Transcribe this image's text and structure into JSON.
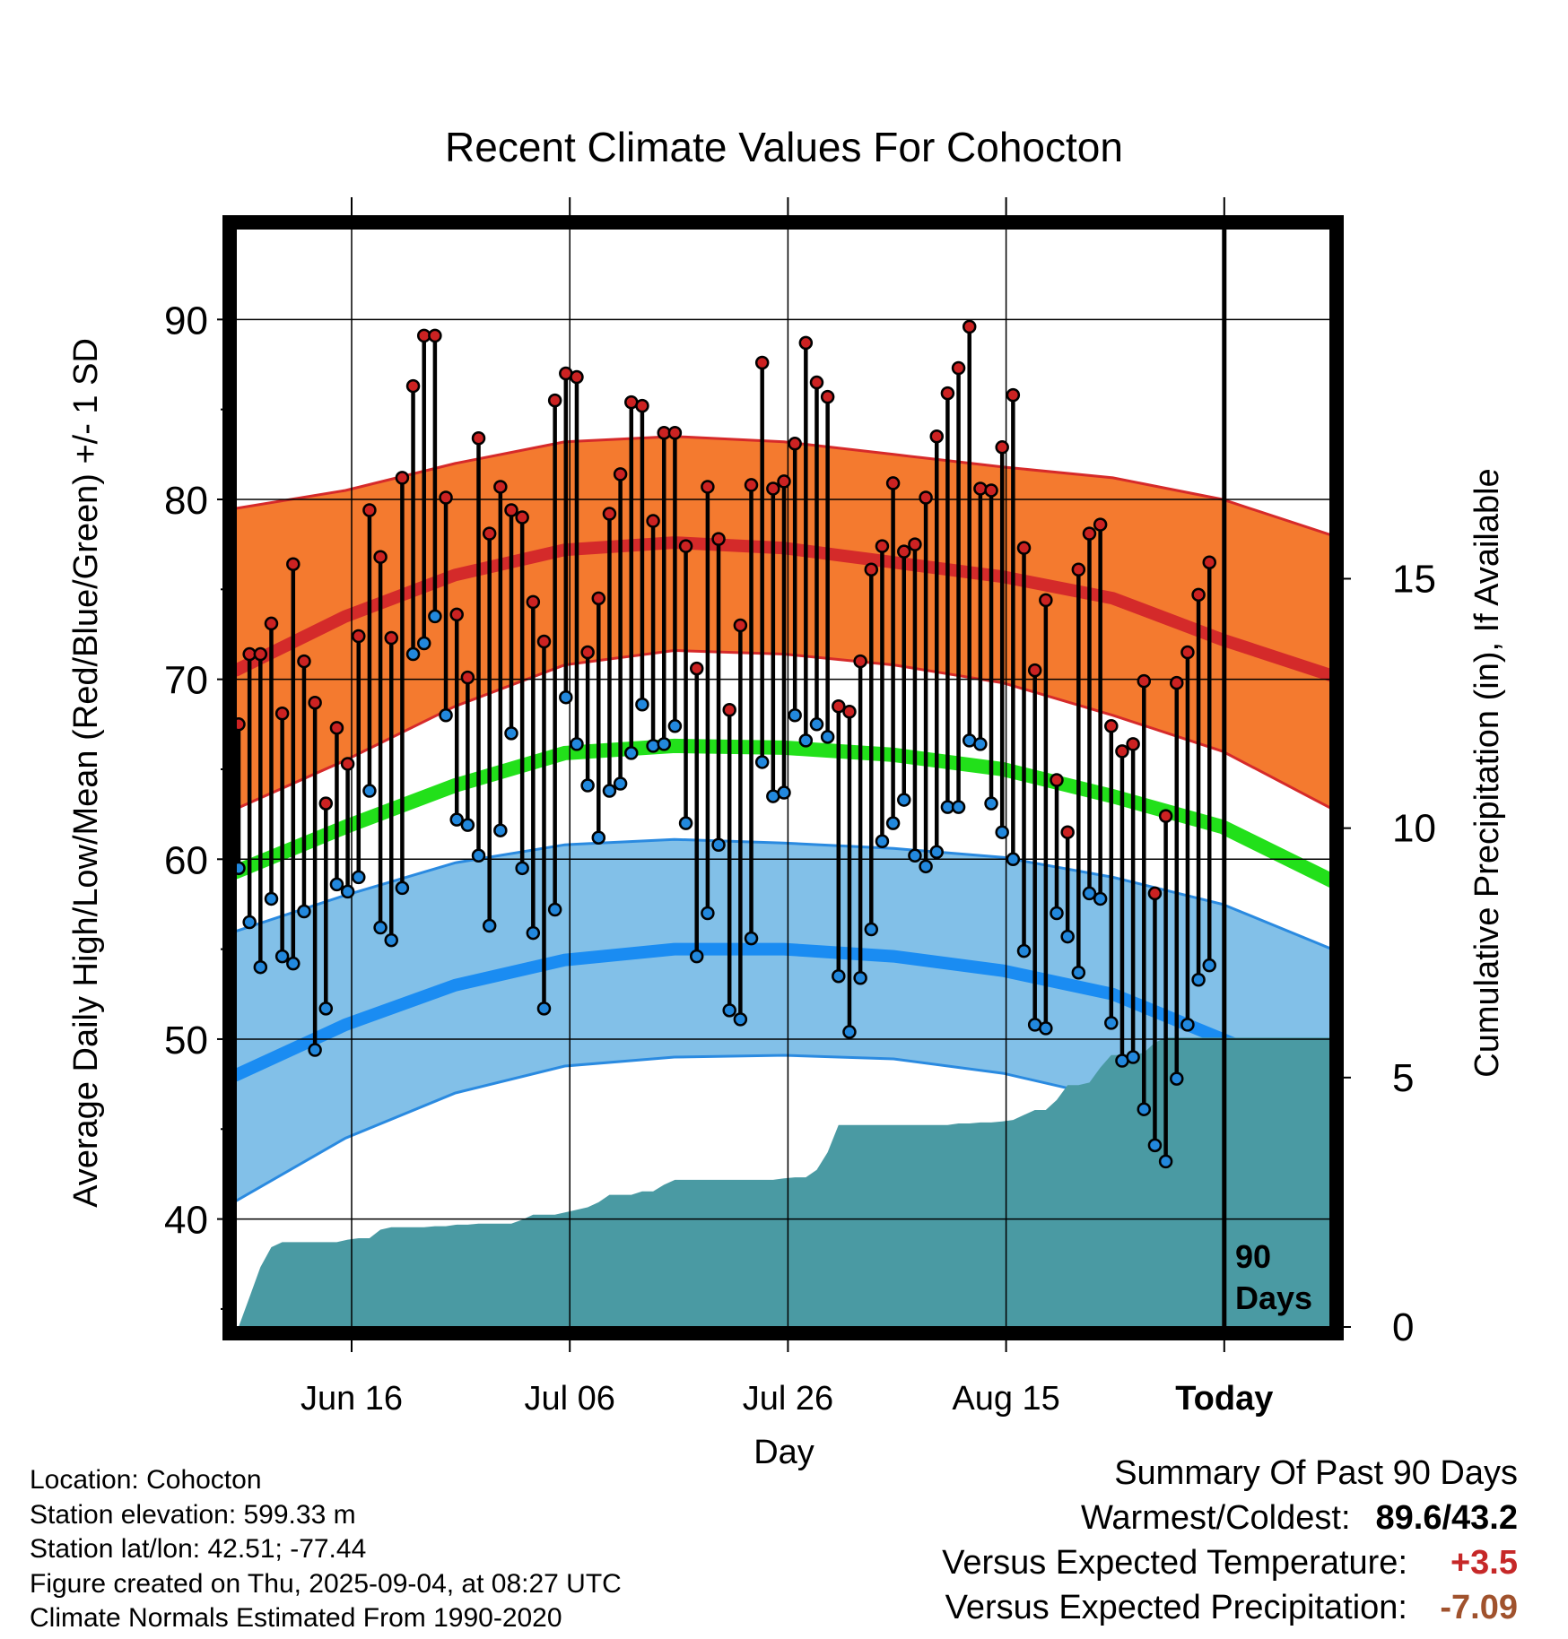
{
  "chart_data": {
    "type": "line",
    "title": "Recent Climate Values For Cohocton",
    "xlabel": "Day",
    "ylabel": "Average Daily High/Low/Mean (Red/Blue/Green) +/- 1 SD",
    "y2label": "Cumulative Precipitation (in), If Available",
    "ylim": [
      34,
      95
    ],
    "y_ticks": [
      40,
      50,
      60,
      70,
      80,
      90
    ],
    "y2lim": [
      0,
      22
    ],
    "y2_ticks": [
      0,
      5,
      10,
      15
    ],
    "x_days": 90,
    "x_ticks": [
      {
        "day": 10,
        "label": "Jun 16"
      },
      {
        "day": 30,
        "label": "Jul 06"
      },
      {
        "day": 50,
        "label": "Jul 26"
      },
      {
        "day": 70,
        "label": "Aug 15"
      },
      {
        "day": 90,
        "label": "Today"
      }
    ],
    "today_marker_label": [
      "90",
      "Days"
    ],
    "normals": {
      "high_mean_points": [
        [
          0,
          70.5
        ],
        [
          10,
          73.5
        ],
        [
          20,
          75.8
        ],
        [
          30,
          77.2
        ],
        [
          40,
          77.6
        ],
        [
          50,
          77.3
        ],
        [
          60,
          76.5
        ],
        [
          70,
          75.7
        ],
        [
          80,
          74.5
        ],
        [
          90,
          72.2
        ],
        [
          100,
          70.2
        ]
      ],
      "high_sd_upper_points": [
        [
          0,
          79.5
        ],
        [
          10,
          80.5
        ],
        [
          20,
          82.0
        ],
        [
          30,
          83.2
        ],
        [
          40,
          83.5
        ],
        [
          50,
          83.2
        ],
        [
          60,
          82.5
        ],
        [
          70,
          81.8
        ],
        [
          80,
          81.2
        ],
        [
          90,
          80.0
        ],
        [
          100,
          78.0
        ]
      ],
      "high_sd_lower_points": [
        [
          0,
          62.8
        ],
        [
          10,
          65.5
        ],
        [
          20,
          68.5
        ],
        [
          30,
          70.8
        ],
        [
          40,
          71.6
        ],
        [
          50,
          71.4
        ],
        [
          60,
          70.8
        ],
        [
          70,
          69.8
        ],
        [
          80,
          68.0
        ],
        [
          90,
          66.0
        ],
        [
          100,
          62.8
        ]
      ],
      "mean_points": [
        [
          0,
          59.3
        ],
        [
          10,
          61.8
        ],
        [
          20,
          64.1
        ],
        [
          30,
          65.9
        ],
        [
          40,
          66.3
        ],
        [
          50,
          66.2
        ],
        [
          60,
          65.8
        ],
        [
          70,
          65.0
        ],
        [
          80,
          63.5
        ],
        [
          90,
          61.8
        ],
        [
          100,
          58.8
        ]
      ],
      "low_mean_points": [
        [
          0,
          48.0
        ],
        [
          10,
          50.8
        ],
        [
          20,
          53.0
        ],
        [
          30,
          54.4
        ],
        [
          40,
          55.0
        ],
        [
          50,
          55.0
        ],
        [
          60,
          54.6
        ],
        [
          70,
          53.8
        ],
        [
          80,
          52.5
        ],
        [
          90,
          50.0
        ],
        [
          100,
          47.5
        ]
      ],
      "low_sd_upper_points": [
        [
          0,
          56.0
        ],
        [
          10,
          58.0
        ],
        [
          20,
          59.8
        ],
        [
          30,
          60.8
        ],
        [
          40,
          61.1
        ],
        [
          50,
          60.9
        ],
        [
          60,
          60.6
        ],
        [
          70,
          60.1
        ],
        [
          80,
          59.0
        ],
        [
          90,
          57.5
        ],
        [
          100,
          55.0
        ]
      ],
      "low_sd_lower_points": [
        [
          0,
          41.0
        ],
        [
          10,
          44.5
        ],
        [
          20,
          47.0
        ],
        [
          30,
          48.5
        ],
        [
          40,
          49.0
        ],
        [
          50,
          49.1
        ],
        [
          60,
          48.9
        ],
        [
          70,
          48.1
        ],
        [
          80,
          46.7
        ],
        [
          90,
          44.0
        ],
        [
          100,
          40.5
        ]
      ]
    },
    "series": [
      {
        "name": "High",
        "color": "#cc2222",
        "values": [
          67.5,
          71.4,
          71.4,
          73.1,
          68.1,
          76.4,
          71.0,
          68.7,
          63.1,
          67.3,
          65.3,
          72.4,
          79.4,
          76.8,
          72.3,
          81.2,
          86.3,
          89.1,
          89.1,
          80.1,
          73.6,
          70.1,
          83.4,
          78.1,
          80.7,
          79.4,
          79.0,
          74.3,
          72.1,
          85.5,
          87.0,
          86.8,
          71.5,
          74.5,
          79.2,
          81.4,
          85.4,
          85.2,
          78.8,
          83.7,
          83.7,
          77.4,
          70.6,
          80.7,
          77.8,
          68.3,
          73.0,
          80.8,
          87.6,
          80.6,
          81.0,
          83.1,
          88.7,
          86.5,
          85.7,
          68.5,
          68.2,
          71.0,
          76.1,
          77.4,
          80.9,
          77.1,
          77.5,
          80.1,
          83.5,
          85.9,
          87.3,
          89.6,
          80.6,
          80.5,
          82.9,
          85.8,
          77.3,
          70.5,
          74.4,
          64.4,
          61.5,
          76.1,
          78.1,
          78.6,
          67.4,
          66.0,
          66.4,
          69.9,
          58.1,
          62.4,
          69.8,
          71.5,
          74.7,
          76.5
        ]
      },
      {
        "name": "Low",
        "color": "#2288dd",
        "values": [
          59.5,
          56.5,
          54.0,
          57.8,
          54.6,
          54.2,
          57.1,
          49.4,
          51.7,
          58.6,
          58.2,
          59.0,
          63.8,
          56.2,
          55.5,
          58.4,
          71.4,
          72.0,
          73.5,
          68.0,
          62.2,
          61.9,
          60.2,
          56.3,
          61.6,
          67.0,
          59.5,
          55.9,
          51.7,
          57.2,
          69.0,
          66.4,
          64.1,
          61.2,
          63.8,
          64.2,
          65.9,
          68.6,
          66.3,
          66.4,
          67.4,
          62.0,
          54.6,
          57.0,
          60.8,
          51.6,
          51.1,
          55.6,
          65.4,
          63.5,
          63.7,
          68.0,
          66.6,
          67.5,
          66.8,
          53.5,
          50.4,
          53.4,
          56.1,
          61.0,
          62.0,
          63.3,
          60.2,
          59.6,
          60.4,
          62.9,
          62.9,
          66.6,
          66.4,
          63.1,
          61.5,
          60.0,
          54.9,
          50.8,
          50.6,
          57.0,
          55.7,
          53.7,
          58.1,
          57.8,
          50.9,
          48.8,
          49.0,
          46.1,
          44.1,
          43.2,
          47.8,
          50.8,
          53.3,
          54.1
        ]
      }
    ],
    "precip_cumulative": [
      [
        0,
        0.0
      ],
      [
        1,
        0.6
      ],
      [
        2,
        1.2
      ],
      [
        3,
        1.6
      ],
      [
        4,
        1.7
      ],
      [
        5,
        1.7
      ],
      [
        6,
        1.7
      ],
      [
        7,
        1.7
      ],
      [
        8,
        1.7
      ],
      [
        9,
        1.7
      ],
      [
        10,
        1.75
      ],
      [
        11,
        1.78
      ],
      [
        12,
        1.78
      ],
      [
        13,
        1.95
      ],
      [
        14,
        2.0
      ],
      [
        15,
        2.0
      ],
      [
        16,
        2.0
      ],
      [
        17,
        2.0
      ],
      [
        18,
        2.02
      ],
      [
        19,
        2.02
      ],
      [
        20,
        2.05
      ],
      [
        21,
        2.05
      ],
      [
        22,
        2.07
      ],
      [
        23,
        2.07
      ],
      [
        24,
        2.07
      ],
      [
        25,
        2.07
      ],
      [
        26,
        2.15
      ],
      [
        27,
        2.25
      ],
      [
        28,
        2.25
      ],
      [
        29,
        2.25
      ],
      [
        30,
        2.3
      ],
      [
        31,
        2.35
      ],
      [
        32,
        2.4
      ],
      [
        33,
        2.5
      ],
      [
        34,
        2.65
      ],
      [
        35,
        2.65
      ],
      [
        36,
        2.65
      ],
      [
        37,
        2.72
      ],
      [
        38,
        2.72
      ],
      [
        39,
        2.85
      ],
      [
        40,
        2.95
      ],
      [
        41,
        2.95
      ],
      [
        42,
        2.95
      ],
      [
        43,
        2.95
      ],
      [
        44,
        2.95
      ],
      [
        45,
        2.95
      ],
      [
        46,
        2.95
      ],
      [
        47,
        2.95
      ],
      [
        48,
        2.95
      ],
      [
        49,
        2.95
      ],
      [
        50,
        2.98
      ],
      [
        51,
        3.0
      ],
      [
        52,
        3.0
      ],
      [
        53,
        3.15
      ],
      [
        54,
        3.5
      ],
      [
        55,
        4.05
      ],
      [
        56,
        4.05
      ],
      [
        57,
        4.05
      ],
      [
        58,
        4.05
      ],
      [
        59,
        4.05
      ],
      [
        60,
        4.05
      ],
      [
        61,
        4.05
      ],
      [
        62,
        4.05
      ],
      [
        63,
        4.05
      ],
      [
        64,
        4.05
      ],
      [
        65,
        4.05
      ],
      [
        66,
        4.08
      ],
      [
        67,
        4.08
      ],
      [
        68,
        4.1
      ],
      [
        69,
        4.1
      ],
      [
        70,
        4.12
      ],
      [
        71,
        4.15
      ],
      [
        72,
        4.25
      ],
      [
        73,
        4.35
      ],
      [
        74,
        4.35
      ],
      [
        75,
        4.55
      ],
      [
        76,
        4.85
      ],
      [
        77,
        4.85
      ],
      [
        78,
        4.9
      ],
      [
        79,
        5.2
      ],
      [
        80,
        5.45
      ],
      [
        81,
        5.45
      ],
      [
        82,
        5.45
      ],
      [
        83,
        5.5
      ],
      [
        84,
        5.7
      ],
      [
        85,
        5.8
      ],
      [
        86,
        5.8
      ],
      [
        87,
        5.8
      ],
      [
        88,
        5.8
      ],
      [
        89,
        5.8
      ],
      [
        90,
        5.8
      ],
      [
        100,
        5.8
      ]
    ]
  },
  "info": {
    "location": "Location: Cohocton",
    "elevation": "Station elevation: 599.33 m",
    "latlon": "Station lat/lon: 42.51; -77.44",
    "created": "Figure created on Thu, 2025-09-04, at 08:27 UTC",
    "normals": "Climate Normals Estimated From 1990-2020"
  },
  "summary": {
    "title": "Summary Of Past 90 Days",
    "warmest_coldest_label": "Warmest/Coldest:",
    "warmest_coldest_value": "89.6/43.2",
    "temp_label": "Versus Expected Temperature:",
    "temp_value": "+3.5",
    "temp_color": "#c62828",
    "precip_label": "Versus Expected Precipitation:",
    "precip_value": "-7.09",
    "precip_color": "#a0522d"
  }
}
